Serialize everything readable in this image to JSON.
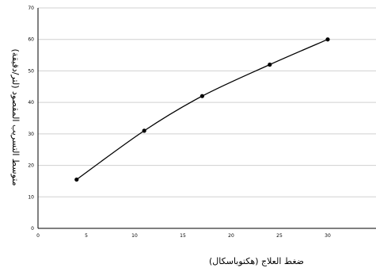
{
  "chart_data": {
    "type": "line",
    "x": [
      4,
      11,
      17,
      24,
      30
    ],
    "y": [
      15.5,
      31,
      42,
      52,
      60
    ],
    "xlabel": "ضغط العلاج (هكتوباسكال)",
    "ylabel": "متوسط التسريب المقصود (لتر/دقيقة)",
    "xlim": [
      0,
      35
    ],
    "ylim": [
      0,
      70
    ],
    "xticks": [
      0,
      5,
      10,
      15,
      20,
      25,
      30
    ],
    "yticks": [
      0,
      10,
      20,
      30,
      40,
      50,
      60,
      70
    ],
    "grid": "horizontal",
    "line_color": "#000000",
    "grid_color": "#d0d0d0"
  }
}
